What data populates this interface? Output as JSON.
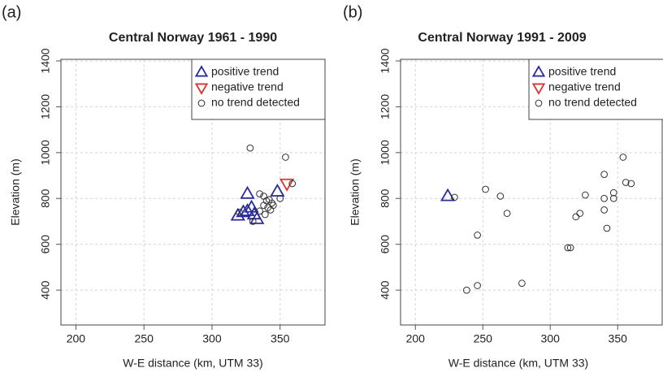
{
  "chart_data": [
    {
      "type": "scatter",
      "panel_label": "(a)",
      "title": "Central Norway 1961 - 1990",
      "xlabel": "W-E distance (km, UTM 33)",
      "ylabel": "Elevation (m)",
      "xlim": [
        189,
        383
      ],
      "ylim": [
        248,
        1407
      ],
      "xticks": [
        200,
        250,
        300,
        350
      ],
      "yticks": [
        400,
        600,
        800,
        1000,
        1200,
        1400
      ],
      "grid": true,
      "legend": "topright",
      "series": [
        {
          "name": "positive trend",
          "color": "#2b2b9c",
          "marker": "triangle",
          "x": [
            326,
            319,
            323,
            329,
            331,
            333,
            348,
            326
          ],
          "values": [
            820,
            725,
            740,
            760,
            730,
            710,
            830,
            745
          ]
        },
        {
          "name": "negative trend",
          "color": "#e03030",
          "marker": "triangle-down",
          "x": [
            355
          ],
          "values": [
            865
          ]
        },
        {
          "name": "no trend detected",
          "color": "#333333",
          "marker": "circle",
          "x": [
            328,
            354,
            359,
            335,
            338,
            340,
            342,
            344,
            341,
            343,
            345,
            339,
            335,
            330,
            350,
            320,
            338
          ],
          "values": [
            1020,
            980,
            865,
            820,
            810,
            790,
            795,
            780,
            760,
            750,
            770,
            730,
            745,
            700,
            800,
            740,
            770
          ]
        }
      ]
    },
    {
      "type": "scatter",
      "panel_label": "(b)",
      "title": "Central Norway 1991 - 2009",
      "xlabel": "W-E distance (km, UTM 33)",
      "ylabel": "Elevation (m)",
      "xlim": [
        189,
        383
      ],
      "ylim": [
        248,
        1407
      ],
      "xticks": [
        200,
        250,
        300,
        350
      ],
      "yticks": [
        400,
        600,
        800,
        1000,
        1200,
        1400
      ],
      "grid": true,
      "legend": "topright",
      "series": [
        {
          "name": "positive trend",
          "color": "#2b2b9c",
          "marker": "triangle",
          "x": [
            224
          ],
          "values": [
            810
          ]
        },
        {
          "name": "negative trend",
          "color": "#e03030",
          "marker": "triangle-down",
          "x": [],
          "values": []
        },
        {
          "name": "no trend detected",
          "color": "#333333",
          "marker": "circle",
          "x": [
            229,
            252,
            263,
            268,
            246,
            238,
            246,
            279,
            313,
            315,
            319,
            322,
            326,
            340,
            340,
            340,
            342,
            347,
            347,
            354,
            356,
            360
          ],
          "values": [
            805,
            840,
            810,
            735,
            640,
            400,
            420,
            430,
            585,
            585,
            720,
            735,
            815,
            905,
            800,
            750,
            670,
            825,
            800,
            980,
            870,
            865
          ]
        }
      ]
    }
  ]
}
